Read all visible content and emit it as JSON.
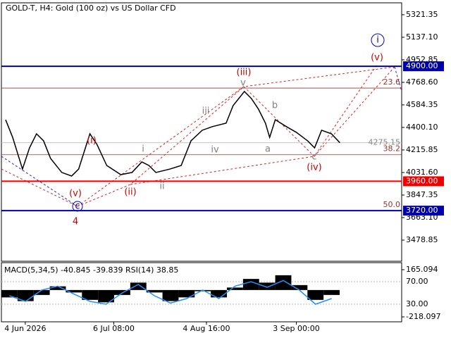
{
  "chart_data": {
    "type": "line",
    "title": "GOLD-T, H4:  Gold (100 oz) vs US Dollar CFD",
    "color": "#000000",
    "x": [
      3,
      8,
      15,
      20,
      25,
      30,
      35,
      43,
      50,
      55,
      63,
      68,
      75,
      85,
      93,
      100,
      105,
      110,
      120,
      128,
      135,
      143,
      150,
      160,
      165,
      173,
      178,
      183,
      188,
      191,
      195,
      203,
      210,
      218,
      223,
      228,
      235,
      241
    ],
    "values": [
      4463,
      4319,
      4060,
      4233,
      4348,
      4291,
      4147,
      4032,
      4003,
      4060,
      4348,
      4262,
      4089,
      4014,
      4032,
      4118,
      4089,
      4032,
      4060,
      4089,
      4291,
      4377,
      4406,
      4435,
      4579,
      4694,
      4636,
      4550,
      4435,
      4319,
      4463,
      4406,
      4360,
      4291,
      4233,
      4377,
      4348,
      4275.15
    ],
    "xlim": [
      0,
      285
    ],
    "xticks": [
      {
        "value": 17,
        "label": "4 Jun 2026"
      },
      {
        "value": 80,
        "label": "6 Jul 08:00"
      },
      {
        "value": 146,
        "label": "4 Aug 16:00"
      },
      {
        "value": 210,
        "label": "3 Sep 00:00"
      }
    ],
    "ylim": [
      3312,
      5413
    ],
    "yticks": [
      5321.35,
      {
        "value": 5137.1,
        "label": "5137.10"
      },
      4952.85,
      {
        "value": 4768.6,
        "label": "4768.60"
      },
      4584.35,
      {
        "value": 4400.1,
        "label": "4400.10"
      },
      4215.85,
      {
        "value": 4031.6,
        "label": "4031.60"
      },
      3847.35,
      {
        "value": 3663.1,
        "label": "3663.10"
      },
      3478.85
    ],
    "levels": [
      {
        "price": 4900,
        "label": "4900.00",
        "color": "#0000aa"
      },
      {
        "price": 3960,
        "label": "3960.00",
        "color": "#ee0000"
      },
      {
        "price": 3720,
        "label": "3720.00",
        "color": "#0000aa"
      }
    ],
    "last_price": {
      "value": 4275.15,
      "label": "4275.15"
    },
    "fib_levels": [
      {
        "price": 4722,
        "label": "23.6"
      },
      {
        "price": 4177,
        "label": "38.2"
      },
      {
        "price": 3720,
        "label": "50.0"
      }
    ],
    "annotations": [
      {
        "text": "(i)",
        "color": "#cc0000"
      },
      {
        "text": "(ii)",
        "color": "#cc0000"
      },
      {
        "text": "(iii)",
        "color": "#cc0000"
      },
      {
        "text": "(iv)",
        "color": "#cc0000"
      },
      {
        "text": "(v)",
        "color": "#cc0000"
      },
      {
        "text": "(v)",
        "color": "#cc0000"
      },
      {
        "text": "4",
        "color": "#cc0000"
      },
      {
        "text": "i",
        "color": "#0000cc"
      },
      {
        "text": "c",
        "color": "#0000cc"
      },
      {
        "text": "i",
        "color": "#808080"
      },
      {
        "text": "ii",
        "color": "#808080"
      },
      {
        "text": "iii",
        "color": "#808080"
      },
      {
        "text": "iv",
        "color": "#808080"
      },
      {
        "text": "v",
        "color": "#808080"
      },
      {
        "text": "a",
        "color": "#808080"
      },
      {
        "text": "b",
        "color": "#808080"
      },
      {
        "text": "c",
        "color": "#808080"
      }
    ],
    "indicator": {
      "label": "MACD(5,34,5) -40.845 -39.839 RSI(14) 38.85",
      "macd_lim": [
        -218.097,
        165.094
      ],
      "macd_ticks": [
        165.094,
        -218.097
      ],
      "macd_values": [
        -60,
        -90,
        -40,
        30,
        -20,
        -80,
        -100,
        -40,
        60,
        -20,
        -90,
        -60,
        -10,
        -60,
        20,
        90,
        60,
        120,
        40,
        -80,
        -40
      ],
      "rsi_lim": [
        0,
        100
      ],
      "rsi_ticks": [
        {
          "value": 70,
          "label": "70.00"
        },
        {
          "value": 30,
          "label": "30.00"
        }
      ],
      "rsi_values": [
        45,
        35,
        55,
        62,
        48,
        35,
        30,
        50,
        65,
        45,
        32,
        40,
        55,
        40,
        62,
        70,
        60,
        72,
        55,
        30,
        40
      ],
      "rsi_color": "#1e90ff"
    }
  }
}
